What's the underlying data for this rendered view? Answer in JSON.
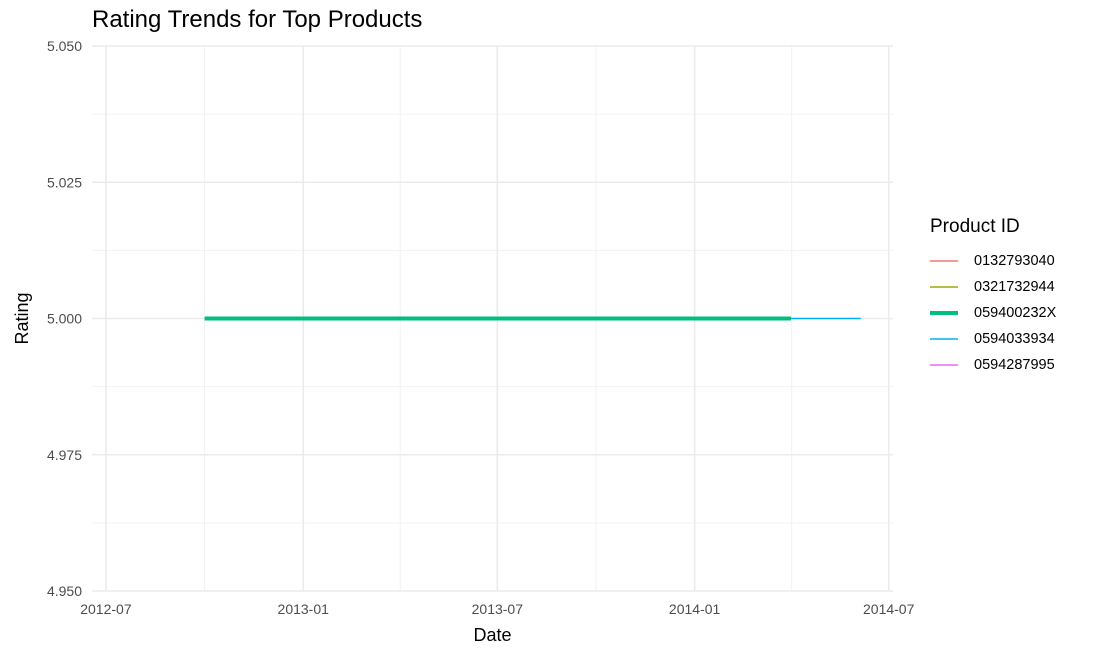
{
  "chart_data": {
    "type": "line",
    "title": "Rating Trends for Top Products",
    "xlabel": "Date",
    "ylabel": "Rating",
    "x_axis": {
      "type": "date",
      "range": [
        "2012-06-18",
        "2014-07-05"
      ],
      "ticks": [
        "2012-07-01",
        "2013-01-01",
        "2013-07-01",
        "2014-01-01",
        "2014-07-01"
      ],
      "tick_labels": [
        "2012-07",
        "2013-01",
        "2013-07",
        "2014-01",
        "2014-07"
      ]
    },
    "y_axis": {
      "range": [
        4.95,
        5.05
      ],
      "ticks": [
        4.95,
        4.975,
        5.0,
        5.025,
        5.05
      ],
      "tick_labels": [
        "4.950",
        "4.975",
        "5.000",
        "5.025",
        "5.050"
      ]
    },
    "grid": true,
    "legend": {
      "title": "Product ID",
      "position": "right"
    },
    "series": [
      {
        "name": "0132793040",
        "color": "#F8766D",
        "x": [],
        "y": []
      },
      {
        "name": "0321732944",
        "color": "#A3A500",
        "x": [],
        "y": []
      },
      {
        "name": "059400232X",
        "color": "#00BF7D",
        "highlight": true,
        "x": [
          "2012-10-01",
          "2014-04-01"
        ],
        "y": [
          5.0,
          5.0
        ]
      },
      {
        "name": "0594033934",
        "color": "#00B0F6",
        "x": [
          "2014-04-01",
          "2014-06-05"
        ],
        "y": [
          5.0,
          5.0
        ]
      },
      {
        "name": "0594287995",
        "color": "#E76BF3",
        "x": [],
        "y": []
      }
    ]
  }
}
